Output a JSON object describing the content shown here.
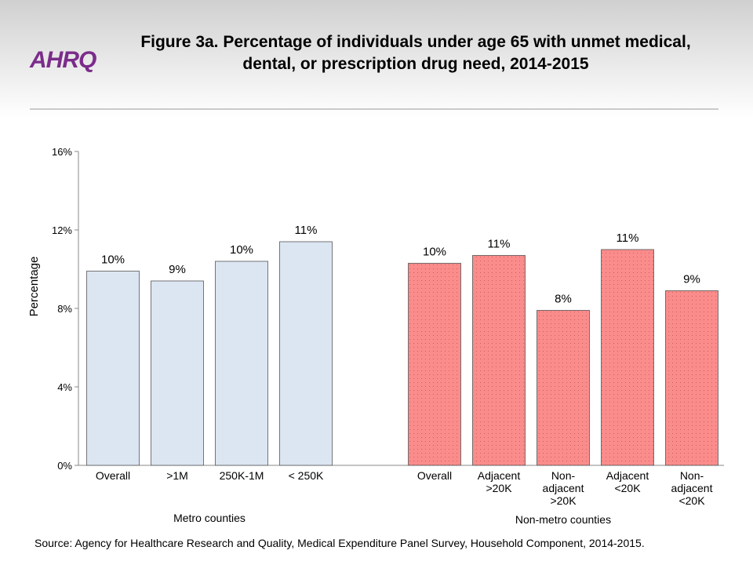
{
  "logo": "AHRQ",
  "chart_data": {
    "type": "bar",
    "title": "Figure 3a. Percentage of individuals under age 65 with unmet medical, dental, or prescription drug need, 2014-2015",
    "y_label": "Percentage",
    "ylim": [
      0,
      16
    ],
    "yticks": [
      {
        "value": 0,
        "label": "0%"
      },
      {
        "value": 4,
        "label": "4%"
      },
      {
        "value": 8,
        "label": "8%"
      },
      {
        "value": 12,
        "label": "12%"
      },
      {
        "value": 16,
        "label": "16%"
      }
    ],
    "groups": [
      {
        "name": "Metro counties",
        "color": "#dce6f2",
        "categories": [
          "Overall",
          ">1M",
          "250K-1M",
          "< 250K"
        ],
        "values": [
          9.9,
          9.4,
          10.4,
          11.4
        ],
        "value_labels": [
          "10%",
          "9%",
          "10%",
          "11%"
        ]
      },
      {
        "name": "Non-metro counties",
        "color": "#fa8c8c",
        "categories": [
          "Overall",
          "Adjacent\n>20K",
          "Non-\nadjacent\n>20K",
          "Adjacent\n<20K",
          "Non-\nadjacent\n<20K"
        ],
        "values": [
          10.3,
          10.7,
          7.9,
          11.0,
          8.9
        ],
        "value_labels": [
          "10%",
          "11%",
          "8%",
          "11%",
          "9%"
        ]
      }
    ],
    "source": "Source: Agency for Healthcare Research and Quality, Medical Expenditure Panel Survey, Household Component, 2014-2015."
  }
}
